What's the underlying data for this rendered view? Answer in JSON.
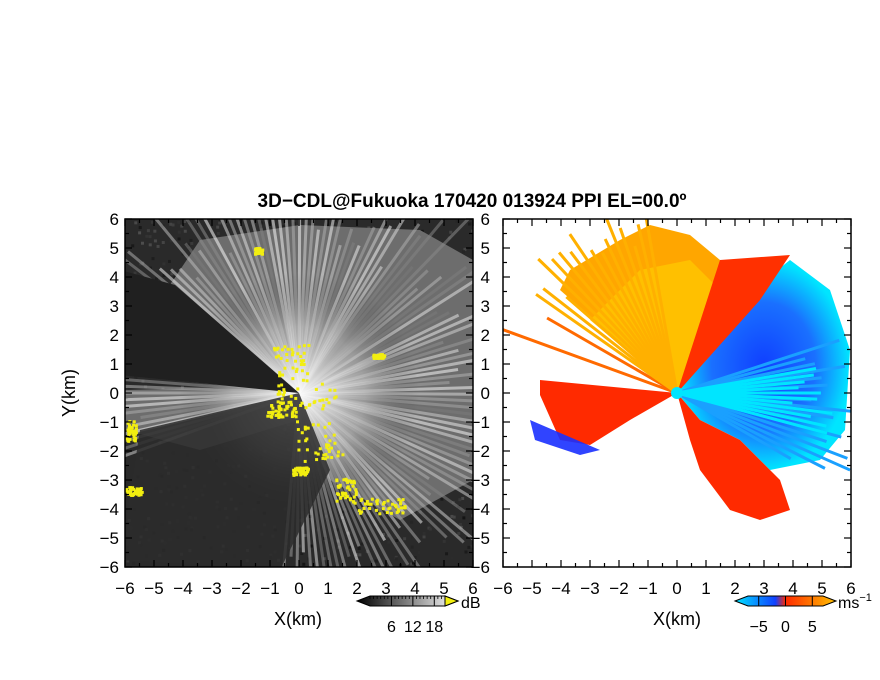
{
  "title": "3D−CDL@Fukuoka 170420 013924 PPI EL=00.0º",
  "chart_data": [
    {
      "type": "heatmap",
      "name": "reflectivity-panel",
      "xlabel": "X(km)",
      "ylabel": "Y(km)",
      "xlim": [
        -6,
        6
      ],
      "ylim": [
        -6,
        6
      ],
      "xticks": [
        "−6",
        "−5",
        "−4",
        "−3",
        "−2",
        "−1",
        "0",
        "1",
        "2",
        "3",
        "4",
        "5",
        "6"
      ],
      "yticks": [
        "6",
        "5",
        "4",
        "3",
        "2",
        "1",
        "0",
        "−1",
        "−2",
        "−3",
        "−4",
        "−5",
        "−6"
      ],
      "colorbar": {
        "unit": "dB",
        "ticks": [
          "6",
          "12",
          "18"
        ],
        "tick_values": [
          6,
          12,
          18
        ],
        "range": [
          0,
          21
        ],
        "colors": [
          "#000000",
          "#ffffff"
        ],
        "highlight_color": "#f2ee10"
      }
    },
    {
      "type": "heatmap",
      "name": "doppler-velocity-panel",
      "xlabel": "X(km)",
      "xlim": [
        -6,
        6
      ],
      "ylim": [
        -6,
        6
      ],
      "xticks": [
        "−6",
        "−5",
        "−4",
        "−3",
        "−2",
        "−1",
        "0",
        "1",
        "2",
        "3",
        "4",
        "5",
        "6"
      ],
      "colorbar": {
        "unit": "ms",
        "unit_exponent": "−1",
        "ticks": [
          "−5",
          "0",
          "5"
        ],
        "tick_values": [
          -5,
          0,
          5
        ],
        "range": [
          -7,
          7
        ],
        "colors": [
          "#00e5ff",
          "#1040ff",
          "#ff2a00",
          "#ffc000"
        ]
      }
    }
  ]
}
